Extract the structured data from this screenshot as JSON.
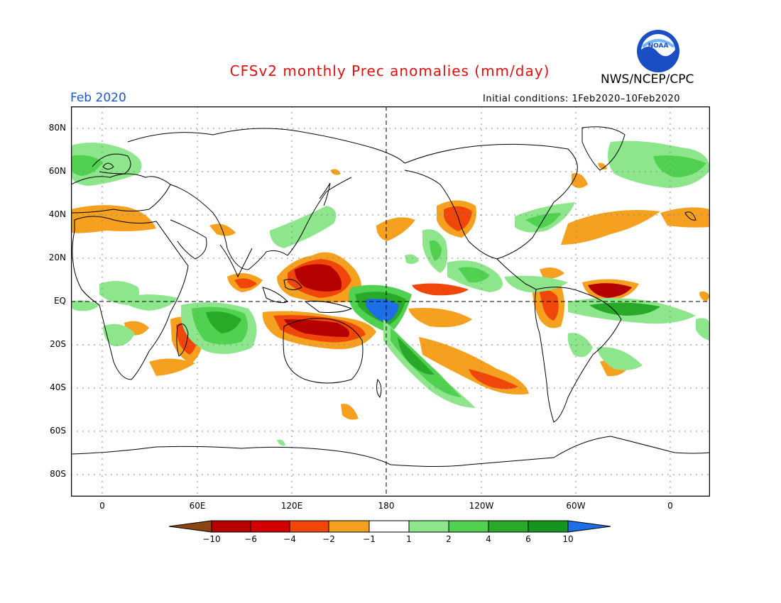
{
  "header": {
    "title": "CFSv2 monthly Prec anomalies (mm/day)",
    "org": "NWS/NCEP/CPC",
    "month": "Feb 2020",
    "initial_conditions": "Initial conditions: 1Feb2020–10Feb2020",
    "logo_text": "NOAA"
  },
  "axes": {
    "lat_labels": [
      "80N",
      "60N",
      "40N",
      "20N",
      "EQ",
      "20S",
      "40S",
      "60S",
      "80S"
    ],
    "lon_labels": [
      "0",
      "60E",
      "120E",
      "180",
      "120W",
      "60W",
      "0"
    ]
  },
  "colorbar": {
    "labels": [
      "−10",
      "−6",
      "−4",
      "−2",
      "−1",
      "1",
      "2",
      "4",
      "6",
      "10"
    ],
    "colors": [
      "#8b4513",
      "#b40000",
      "#d20000",
      "#f0460a",
      "#f5a01e",
      "#ffffff",
      "#8ee68c",
      "#50d250",
      "#28aa28",
      "#14961e",
      "#1e6ee6"
    ]
  },
  "colors": {
    "title": "#e01010",
    "month": "#1a57d8",
    "dry_moderate": "#f5a01e",
    "dry_strong": "#f0460a",
    "dry_extreme": "#b40000",
    "wet_moderate": "#8ee68c",
    "wet_strong": "#50d250",
    "wet_heavy": "#28aa28",
    "wet_extreme": "#1e6ee6"
  }
}
